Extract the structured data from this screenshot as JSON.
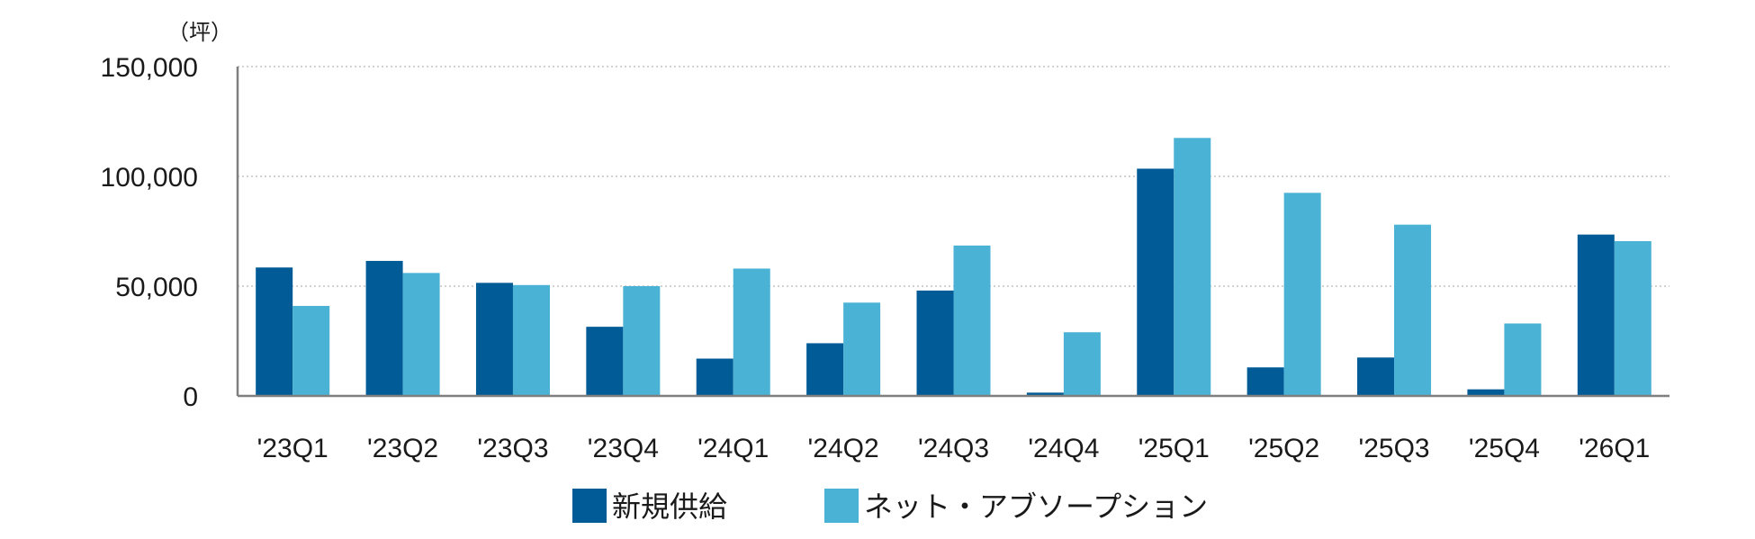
{
  "chart_data": {
    "type": "bar",
    "unit_label": "（坪）",
    "categories": [
      "'23Q1",
      "'23Q2",
      "'23Q3",
      "'23Q4",
      "'24Q1",
      "'24Q2",
      "'24Q3",
      "'24Q4",
      "'25Q1",
      "'25Q2",
      "'25Q3",
      "'25Q4",
      "'26Q1"
    ],
    "series": [
      {
        "name": "新規供給",
        "color": "#005b96",
        "values": [
          58500,
          61500,
          51500,
          31500,
          17000,
          24000,
          48000,
          1500,
          103500,
          13000,
          17500,
          3000,
          73500
        ]
      },
      {
        "name": "ネット・アブソープション",
        "color": "#4ab2d4",
        "values": [
          41000,
          56000,
          50500,
          50000,
          58000,
          42500,
          68500,
          29000,
          117500,
          92500,
          78000,
          33000,
          70500
        ]
      }
    ],
    "ylim": [
      0,
      150000
    ],
    "yticks": [
      0,
      50000,
      100000,
      150000
    ],
    "ytick_labels": [
      "0",
      "50,000",
      "100,000",
      "150,000"
    ],
    "grid": true,
    "legend_position": "bottom"
  }
}
